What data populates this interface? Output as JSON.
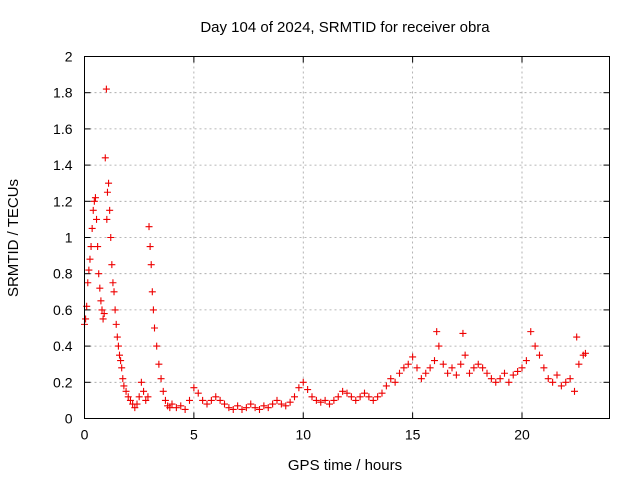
{
  "chart_data": {
    "type": "scatter",
    "title": "Day 104 of 2024, SRMTID for receiver obra",
    "xlabel": "GPS time / hours",
    "ylabel": "SRMTID / TECUs",
    "xlim": [
      0,
      24
    ],
    "ylim": [
      0,
      2
    ],
    "x_ticks": [
      0,
      5,
      10,
      15,
      20
    ],
    "x_tick_labels": [
      "0",
      "5",
      "10",
      "15",
      "20"
    ],
    "y_ticks": [
      0,
      0.2,
      0.4,
      0.6,
      0.8,
      1,
      1.2,
      1.4,
      1.6,
      1.8,
      2
    ],
    "y_tick_labels": [
      "0",
      "0.2",
      "0.4",
      "0.6",
      "0.8",
      "1",
      "1.2",
      "1.4",
      "1.6",
      "1.8",
      "2"
    ],
    "grid": true,
    "marker": "+",
    "color": "#ee0000",
    "series": [
      {
        "name": "SRMTID",
        "points": [
          [
            0.0,
            0.52
          ],
          [
            0.05,
            0.55
          ],
          [
            0.1,
            0.62
          ],
          [
            0.15,
            0.75
          ],
          [
            0.2,
            0.82
          ],
          [
            0.25,
            0.88
          ],
          [
            0.3,
            0.95
          ],
          [
            0.35,
            1.05
          ],
          [
            0.4,
            1.15
          ],
          [
            0.45,
            1.2
          ],
          [
            0.5,
            1.22
          ],
          [
            0.55,
            1.1
          ],
          [
            0.6,
            0.95
          ],
          [
            0.65,
            0.8
          ],
          [
            0.7,
            0.72
          ],
          [
            0.75,
            0.65
          ],
          [
            0.8,
            0.6
          ],
          [
            0.85,
            0.55
          ],
          [
            0.9,
            0.58
          ],
          [
            0.95,
            1.44
          ],
          [
            1.0,
            1.82
          ],
          [
            1.02,
            1.1
          ],
          [
            1.05,
            1.25
          ],
          [
            1.1,
            1.3
          ],
          [
            1.15,
            1.15
          ],
          [
            1.2,
            1.0
          ],
          [
            1.25,
            0.85
          ],
          [
            1.3,
            0.75
          ],
          [
            1.35,
            0.7
          ],
          [
            1.4,
            0.6
          ],
          [
            1.45,
            0.52
          ],
          [
            1.5,
            0.45
          ],
          [
            1.55,
            0.4
          ],
          [
            1.6,
            0.35
          ],
          [
            1.65,
            0.32
          ],
          [
            1.7,
            0.28
          ],
          [
            1.75,
            0.22
          ],
          [
            1.8,
            0.18
          ],
          [
            1.9,
            0.15
          ],
          [
            2.0,
            0.12
          ],
          [
            2.1,
            0.1
          ],
          [
            2.2,
            0.08
          ],
          [
            2.3,
            0.06
          ],
          [
            2.4,
            0.08
          ],
          [
            2.5,
            0.12
          ],
          [
            2.6,
            0.2
          ],
          [
            2.7,
            0.15
          ],
          [
            2.8,
            0.1
          ],
          [
            2.9,
            0.12
          ],
          [
            2.95,
            1.06
          ],
          [
            3.0,
            0.95
          ],
          [
            3.05,
            0.85
          ],
          [
            3.1,
            0.7
          ],
          [
            3.15,
            0.6
          ],
          [
            3.2,
            0.5
          ],
          [
            3.3,
            0.4
          ],
          [
            3.4,
            0.3
          ],
          [
            3.5,
            0.22
          ],
          [
            3.6,
            0.15
          ],
          [
            3.7,
            0.1
          ],
          [
            3.8,
            0.07
          ],
          [
            3.9,
            0.06
          ],
          [
            4.0,
            0.08
          ],
          [
            4.2,
            0.06
          ],
          [
            4.4,
            0.07
          ],
          [
            4.6,
            0.05
          ],
          [
            4.8,
            0.1
          ],
          [
            5.0,
            0.17
          ],
          [
            5.2,
            0.14
          ],
          [
            5.4,
            0.1
          ],
          [
            5.6,
            0.08
          ],
          [
            5.8,
            0.1
          ],
          [
            6.0,
            0.12
          ],
          [
            6.2,
            0.1
          ],
          [
            6.4,
            0.08
          ],
          [
            6.6,
            0.06
          ],
          [
            6.8,
            0.05
          ],
          [
            7.0,
            0.07
          ],
          [
            7.2,
            0.05
          ],
          [
            7.4,
            0.06
          ],
          [
            7.6,
            0.08
          ],
          [
            7.8,
            0.06
          ],
          [
            8.0,
            0.05
          ],
          [
            8.2,
            0.07
          ],
          [
            8.4,
            0.06
          ],
          [
            8.6,
            0.08
          ],
          [
            8.8,
            0.1
          ],
          [
            9.0,
            0.08
          ],
          [
            9.2,
            0.07
          ],
          [
            9.4,
            0.09
          ],
          [
            9.6,
            0.12
          ],
          [
            9.8,
            0.17
          ],
          [
            10.0,
            0.2
          ],
          [
            10.2,
            0.16
          ],
          [
            10.4,
            0.12
          ],
          [
            10.6,
            0.1
          ],
          [
            10.8,
            0.09
          ],
          [
            11.0,
            0.1
          ],
          [
            11.2,
            0.08
          ],
          [
            11.4,
            0.1
          ],
          [
            11.6,
            0.12
          ],
          [
            11.8,
            0.15
          ],
          [
            12.0,
            0.14
          ],
          [
            12.2,
            0.12
          ],
          [
            12.4,
            0.1
          ],
          [
            12.6,
            0.12
          ],
          [
            12.8,
            0.14
          ],
          [
            13.0,
            0.12
          ],
          [
            13.2,
            0.1
          ],
          [
            13.4,
            0.12
          ],
          [
            13.6,
            0.14
          ],
          [
            13.8,
            0.18
          ],
          [
            14.0,
            0.22
          ],
          [
            14.2,
            0.2
          ],
          [
            14.4,
            0.25
          ],
          [
            14.6,
            0.28
          ],
          [
            14.8,
            0.3
          ],
          [
            15.0,
            0.34
          ],
          [
            15.2,
            0.28
          ],
          [
            15.4,
            0.22
          ],
          [
            15.6,
            0.25
          ],
          [
            15.8,
            0.28
          ],
          [
            16.0,
            0.32
          ],
          [
            16.1,
            0.48
          ],
          [
            16.2,
            0.4
          ],
          [
            16.4,
            0.3
          ],
          [
            16.6,
            0.25
          ],
          [
            16.8,
            0.28
          ],
          [
            17.0,
            0.24
          ],
          [
            17.2,
            0.3
          ],
          [
            17.3,
            0.47
          ],
          [
            17.4,
            0.35
          ],
          [
            17.6,
            0.25
          ],
          [
            17.8,
            0.28
          ],
          [
            18.0,
            0.3
          ],
          [
            18.2,
            0.28
          ],
          [
            18.4,
            0.25
          ],
          [
            18.6,
            0.22
          ],
          [
            18.8,
            0.2
          ],
          [
            19.0,
            0.22
          ],
          [
            19.2,
            0.25
          ],
          [
            19.4,
            0.2
          ],
          [
            19.6,
            0.24
          ],
          [
            19.8,
            0.26
          ],
          [
            20.0,
            0.28
          ],
          [
            20.2,
            0.32
          ],
          [
            20.4,
            0.48
          ],
          [
            20.6,
            0.4
          ],
          [
            20.8,
            0.35
          ],
          [
            21.0,
            0.28
          ],
          [
            21.2,
            0.22
          ],
          [
            21.4,
            0.2
          ],
          [
            21.6,
            0.24
          ],
          [
            21.8,
            0.18
          ],
          [
            22.0,
            0.2
          ],
          [
            22.2,
            0.22
          ],
          [
            22.4,
            0.15
          ],
          [
            22.5,
            0.45
          ],
          [
            22.6,
            0.3
          ],
          [
            22.8,
            0.35
          ],
          [
            22.9,
            0.36
          ]
        ]
      }
    ]
  }
}
